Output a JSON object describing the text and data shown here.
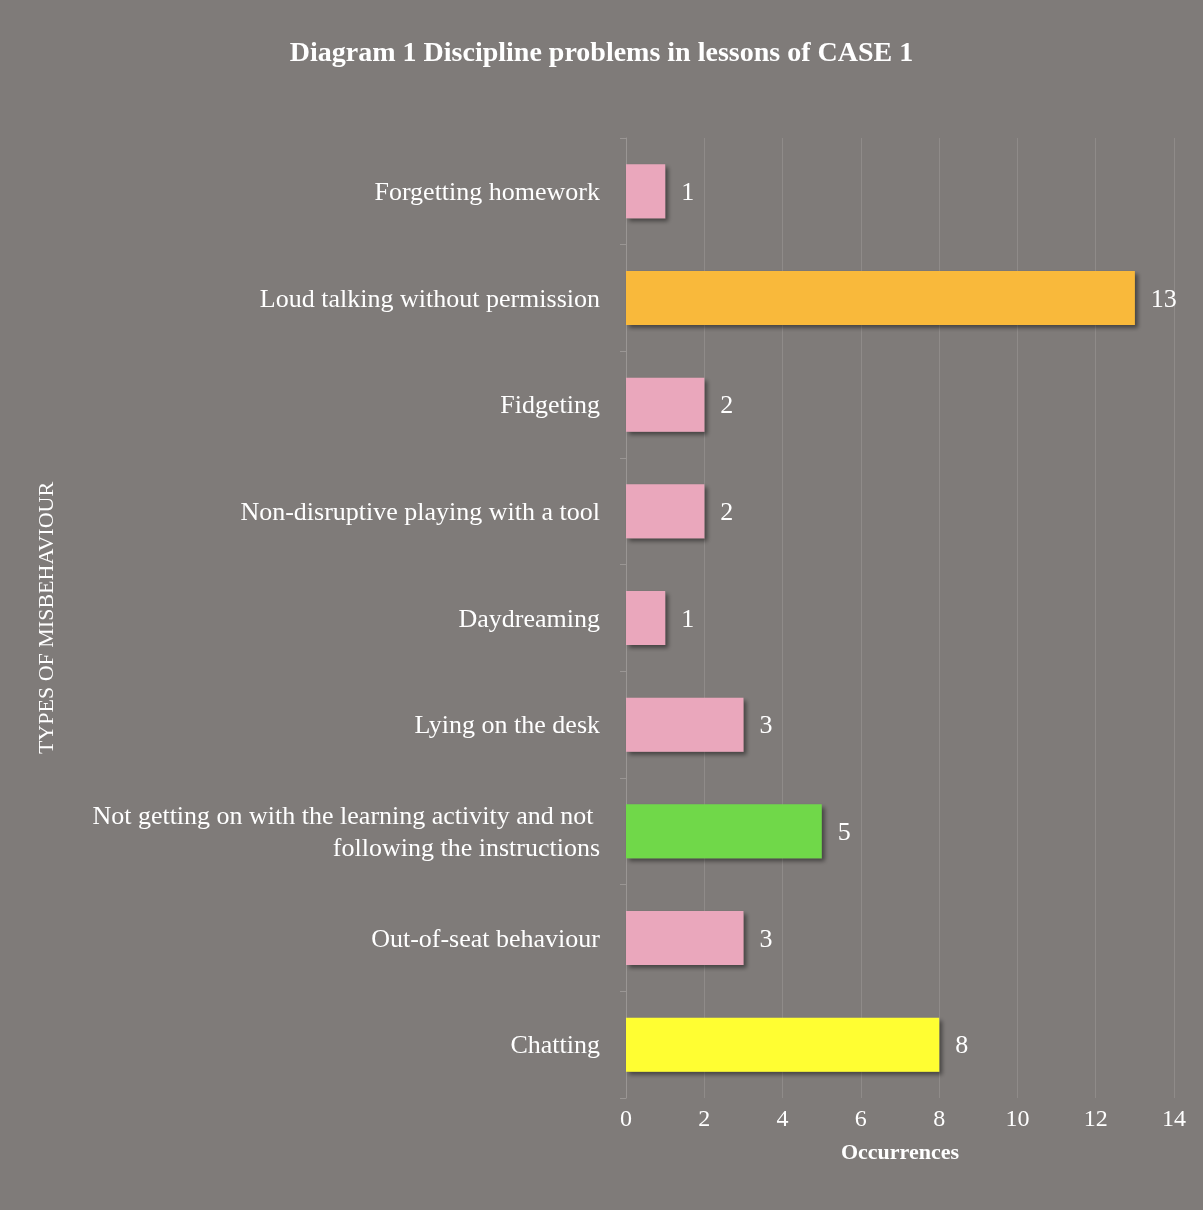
{
  "chart_data": {
    "type": "bar",
    "orientation": "horizontal",
    "title": "Diagram 1 Discipline problems in lessons of CASE 1",
    "xlabel": "Occurrences",
    "ylabel": "TYPES OF MISBEHAVIOUR",
    "categories": [
      "Forgetting homework",
      "Loud talking without permission",
      "Fidgeting",
      "Non-disruptive playing with a tool",
      "Daydreaming",
      "Lying on the desk",
      "Not getting on with the learning activity and not following the instructions",
      "Out-of-seat behaviour",
      "Chatting"
    ],
    "values": [
      1,
      13,
      2,
      2,
      1,
      3,
      5,
      3,
      8
    ],
    "colors": [
      "#eaa7bc",
      "#f9b93b",
      "#eaa7bc",
      "#eaa7bc",
      "#eaa7bc",
      "#eaa7bc",
      "#6fd84a",
      "#eaa7bc",
      "#fffe33"
    ],
    "xlim": [
      0,
      14
    ],
    "xticks": [
      0,
      2,
      4,
      6,
      8,
      10,
      12,
      14
    ],
    "grid": "x",
    "data_labels": true
  }
}
